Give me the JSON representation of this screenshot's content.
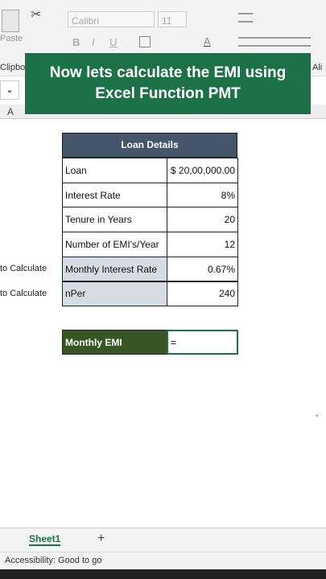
{
  "ribbon": {
    "paste": "Paste",
    "clipboard": "Clipbo",
    "font_name": "Calibri",
    "font_size": "11",
    "bold": "B",
    "italic": "I",
    "underline": "U",
    "font_color": "A",
    "alignment": "Ali"
  },
  "banner": {
    "text": "Now lets calculate the EMI using Excel Function PMT"
  },
  "sheet": {
    "column_header": "A",
    "side_labels": [
      "to Calculate",
      "to Calculate"
    ],
    "table": {
      "title": "Loan Details",
      "rows": [
        [
          "Loan",
          "$ 20,00,000.00"
        ],
        [
          "Interest Rate",
          "8%"
        ],
        [
          "Tenure in Years",
          "20"
        ],
        [
          "Number of EMI's/Year",
          "12"
        ],
        [
          "Monthly Interest Rate",
          "0.67%"
        ],
        [
          "nPer",
          "240"
        ]
      ]
    },
    "emi": {
      "label": "Monthly EMI",
      "formula": "="
    }
  },
  "tabs": {
    "active": "Sheet1",
    "add": "+"
  },
  "status": {
    "accessibility": "Accessibility: Good to go"
  }
}
